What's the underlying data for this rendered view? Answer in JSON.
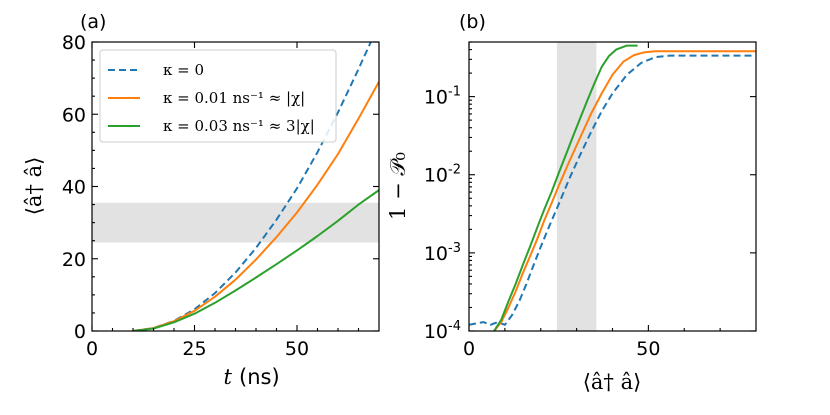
{
  "chart_data": [
    {
      "panel": "(a)",
      "type": "line",
      "xlabel_var": "t",
      "xlabel_unit": "(ns)",
      "ylabel": "⟨â† â⟩",
      "xlim": [
        0,
        70
      ],
      "ylim": [
        0,
        80
      ],
      "xticks": [
        0,
        25,
        50
      ],
      "yticks": [
        0,
        20,
        40,
        60,
        80
      ],
      "shaded_y_band": [
        24.5,
        35.5
      ],
      "legend_position": "upper-left",
      "series": [
        {
          "name": "κ = 0",
          "color": "#1f77b4",
          "dash": true,
          "x": [
            10,
            15,
            20,
            25,
            30,
            35,
            40,
            45,
            50,
            55,
            60,
            65,
            68
          ],
          "y": [
            0,
            0.8,
            2.8,
            6.0,
            10.5,
            16.2,
            23.0,
            30.8,
            39.5,
            49.5,
            60.5,
            72.5,
            80
          ]
        },
        {
          "name": "κ = 0.01 ns⁻¹ ≈ |χ|",
          "color": "#ff7f0e",
          "dash": false,
          "x": [
            10,
            15,
            20,
            25,
            30,
            35,
            40,
            45,
            50,
            55,
            60,
            65,
            70
          ],
          "y": [
            0,
            0.8,
            2.7,
            5.6,
            9.5,
            14.2,
            19.8,
            26.0,
            32.8,
            40.5,
            49.0,
            58.8,
            69.0
          ]
        },
        {
          "name": "κ = 0.03 ns⁻¹ ≈ 3|χ|",
          "color": "#2ca02c",
          "dash": false,
          "x": [
            10,
            15,
            20,
            25,
            30,
            35,
            40,
            45,
            50,
            55,
            60,
            65,
            70
          ],
          "y": [
            0,
            0.7,
            2.4,
            4.8,
            7.8,
            11.2,
            14.8,
            18.5,
            22.3,
            26.3,
            30.5,
            35.0,
            39.0
          ]
        }
      ]
    },
    {
      "panel": "(b)",
      "type": "line",
      "xlabel": "⟨â† â⟩",
      "ylabel": "1 − 𝒫₀",
      "yscale": "log",
      "xlim": [
        0,
        80
      ],
      "ylim": [
        0.0001,
        0.5
      ],
      "xticks": [
        0,
        50
      ],
      "yticks": [
        0.0001,
        0.001,
        0.01,
        0.1
      ],
      "ytick_labels": [
        "10-4",
        "10-3",
        "10-2",
        "10-1"
      ],
      "shaded_x_band": [
        24.5,
        35.5
      ],
      "series": [
        {
          "name": "κ = 0",
          "color": "#1f77b4",
          "dash": true,
          "x": [
            0,
            4,
            6,
            8,
            10,
            12,
            14,
            16,
            18,
            20,
            22,
            25,
            28,
            31,
            34,
            37,
            40,
            44,
            48,
            52,
            56,
            60,
            70,
            80
          ],
          "y": [
            0.00012,
            0.00013,
            0.00012,
            0.00013,
            0.00012,
            0.00016,
            0.00024,
            0.0004,
            0.0007,
            0.0012,
            0.002,
            0.0042,
            0.009,
            0.018,
            0.035,
            0.065,
            0.11,
            0.19,
            0.27,
            0.32,
            0.335,
            0.335,
            0.335,
            0.335
          ]
        },
        {
          "name": "κ = 0.01 ns⁻¹ ≈ |χ|",
          "color": "#ff7f0e",
          "dash": false,
          "x": [
            7,
            9,
            11,
            13,
            15,
            17,
            19,
            21,
            23,
            25,
            28,
            31,
            34,
            37,
            40,
            43,
            46,
            49,
            52,
            60,
            80
          ],
          "y": [
            0.0001,
            0.00013,
            0.0002,
            0.00032,
            0.00055,
            0.0009,
            0.0015,
            0.0026,
            0.0043,
            0.0072,
            0.015,
            0.03,
            0.06,
            0.11,
            0.19,
            0.28,
            0.34,
            0.37,
            0.38,
            0.38,
            0.38
          ]
        },
        {
          "name": "κ = 0.03 ns⁻¹ ≈ 3|χ|",
          "color": "#2ca02c",
          "dash": false,
          "x": [
            7,
            9,
            11,
            13,
            15,
            17,
            19,
            21,
            23,
            25,
            27,
            29,
            31,
            33,
            35,
            37,
            39,
            41,
            44,
            47
          ],
          "y": [
            0.0001,
            0.00014,
            0.00024,
            0.0004,
            0.0007,
            0.0012,
            0.0021,
            0.0036,
            0.006,
            0.0105,
            0.018,
            0.031,
            0.053,
            0.09,
            0.15,
            0.24,
            0.33,
            0.4,
            0.45,
            0.45
          ]
        }
      ]
    }
  ]
}
